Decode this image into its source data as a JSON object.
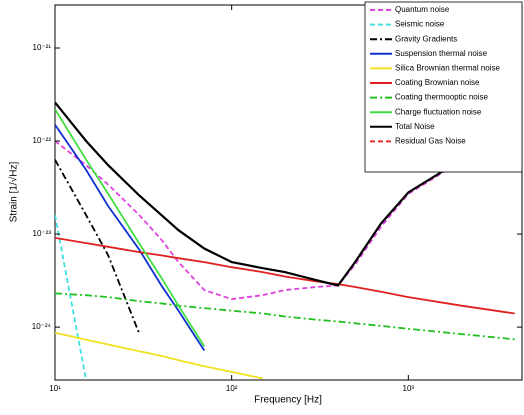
{
  "chart_data": {
    "type": "line",
    "x_label": "Frequency [Hz]",
    "y_label": "Strain [1/√Hz]",
    "xscale": "log",
    "yscale": "log",
    "xlim": [
      10,
      4400
    ],
    "ylim": [
      2.7e-25,
      2.9e-21
    ],
    "xticks": [
      {
        "value": 10,
        "label": "10¹"
      },
      {
        "value": 100,
        "label": "10²"
      },
      {
        "value": 1000,
        "label": "10³"
      }
    ],
    "yticks": [
      {
        "value": 1e-24,
        "label": "10⁻²⁴"
      },
      {
        "value": 1e-23,
        "label": "10⁻²³"
      },
      {
        "value": 1e-22,
        "label": "10⁻²²"
      },
      {
        "value": 1e-21,
        "label": "10⁻²¹"
      }
    ],
    "legend": "upper right",
    "x": [
      10,
      15,
      20,
      30,
      40,
      50,
      70,
      100,
      150,
      200,
      300,
      400,
      500,
      700,
      1000,
      2000,
      4000
    ],
    "series": [
      {
        "name": "Quantum noise",
        "color": "#e040e0",
        "dash": "dashed",
        "values": [
          1e-22,
          5.5e-23,
          3.4e-23,
          1.6e-23,
          8.7e-24,
          5e-24,
          2.5e-24,
          2e-24,
          2.2e-24,
          2.5e-24,
          2.7e-24,
          2.8e-24,
          4.7e-24,
          1.2e-23,
          2.7e-23,
          6.1e-23,
          9.8e-23
        ]
      },
      {
        "name": "Seismic noise",
        "color": "#40e0e0",
        "dash": "dashed",
        "values": [
          1.6e-23,
          2.7e-25,
          null,
          null,
          null,
          null,
          null,
          null,
          null,
          null,
          null,
          null,
          null,
          null,
          null,
          null,
          null
        ]
      },
      {
        "name": "Gravity Gradients",
        "color": "#000000",
        "dash": "dashdot",
        "values": [
          6.3e-23,
          1.6e-23,
          5.9e-24,
          8.5e-25,
          null,
          null,
          null,
          null,
          null,
          null,
          null,
          null,
          null,
          null,
          null,
          null,
          null
        ]
      },
      {
        "name": "Suspension thermal noise",
        "color": "#1030d0",
        "dash": "solid",
        "values": [
          1.5e-22,
          4.9e-23,
          2e-23,
          6.8e-24,
          2.8e-24,
          1.5e-24,
          5.6e-25,
          null,
          null,
          null,
          null,
          null,
          null,
          null,
          null,
          null,
          null
        ]
      },
      {
        "name": "Silica Brownian thermal noise",
        "color": "#f0e020",
        "dash": "solid",
        "values": [
          8.7e-25,
          7.3e-25,
          6.5e-25,
          5.5e-25,
          4.9e-25,
          4.4e-25,
          3.8e-25,
          3.3e-25,
          2.8e-25,
          null,
          null,
          null,
          null,
          null,
          null,
          null,
          null
        ]
      },
      {
        "name": "Coating Brownian noise",
        "color": "#e02020",
        "dash": "solid",
        "values": [
          9.1e-24,
          8e-24,
          7.3e-24,
          6.4e-24,
          5.9e-24,
          5.5e-24,
          5e-24,
          4.4e-24,
          3.9e-24,
          3.5e-24,
          3.1e-24,
          2.9e-24,
          2.7e-24,
          2.4e-24,
          2.1e-24,
          1.7e-24,
          1.4e-24
        ]
      },
      {
        "name": "Coating thermooptic noise",
        "color": "#20c020",
        "dash": "dashdot",
        "values": [
          2.3e-24,
          2.2e-24,
          2.1e-24,
          1.9e-24,
          1.8e-24,
          1.7e-24,
          1.6e-24,
          1.5e-24,
          1.4e-24,
          1.3e-24,
          1.2e-24,
          1.15e-24,
          1.1e-24,
          1.03e-24,
          9.6e-25,
          8.4e-25,
          7.4e-25
        ]
      },
      {
        "name": "Charge fluctuation noise",
        "color": "#40e040",
        "dash": "solid",
        "values": [
          2.2e-22,
          6.3e-23,
          2.7e-23,
          7.9e-24,
          3.4e-24,
          1.7e-24,
          6.2e-25,
          null,
          null,
          null,
          null,
          null,
          null,
          null,
          null,
          null,
          null
        ]
      },
      {
        "name": "Total Noise",
        "color": "#000000",
        "dash": "solid",
        "values": [
          2.6e-22,
          1e-22,
          5.5e-23,
          2.6e-23,
          1.6e-23,
          1.1e-23,
          7e-24,
          5e-24,
          4.3e-24,
          3.9e-24,
          3.2e-24,
          2.8e-24,
          5e-24,
          1.3e-23,
          2.8e-23,
          6.3e-23,
          1e-22
        ]
      },
      {
        "name": "Residual Gas Noise",
        "color": "#e03030",
        "dash": "dashed",
        "values": [
          null,
          null,
          null,
          null,
          null,
          null,
          null,
          null,
          null,
          null,
          null,
          null,
          null,
          null,
          null,
          null,
          null
        ]
      }
    ]
  }
}
